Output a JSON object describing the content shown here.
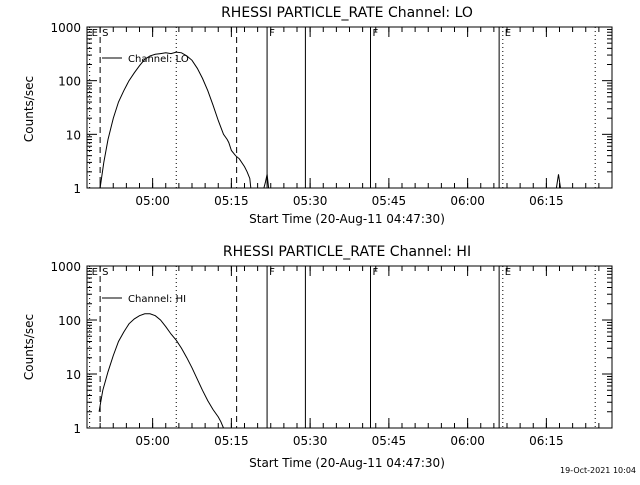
{
  "plot_date": "19-Oct-2021 10:04",
  "chart_data": [
    {
      "type": "line",
      "title": "RHESSI PARTICLE_RATE Channel: LO",
      "xlabel": "Start Time (20-Aug-11 04:47:30)",
      "ylabel": "Counts/sec",
      "x_unit": "minutes after 04:47:30",
      "xlim": [
        0,
        100
      ],
      "ylim": [
        1,
        1000
      ],
      "y_scale": "log",
      "x_tick_values": [
        12.5,
        27.5,
        42.5,
        57.5,
        72.5,
        87.5
      ],
      "x_tick_labels": [
        "05:00",
        "05:15",
        "05:30",
        "05:45",
        "06:00",
        "06:15"
      ],
      "y_tick_values": [
        1,
        10,
        100,
        1000
      ],
      "y_tick_labels": [
        "1",
        "10",
        "100",
        "1000"
      ],
      "legend": {
        "label": "Channel: LO",
        "position": "top-left"
      },
      "markers": [
        {
          "x": 0.5,
          "label": "E",
          "style": "dotted"
        },
        {
          "x": 2.5,
          "label": "S",
          "style": "dashed"
        },
        {
          "x": 17.0,
          "label": "",
          "style": "dotted"
        },
        {
          "x": 28.5,
          "label": "",
          "style": "dashed"
        },
        {
          "x": 34.3,
          "label": "F",
          "style": "solid"
        },
        {
          "x": 41.6,
          "label": "",
          "style": "solid"
        },
        {
          "x": 54.0,
          "label": "F",
          "style": "solid"
        },
        {
          "x": 78.5,
          "label": "",
          "style": "solid"
        },
        {
          "x": 79.2,
          "label": "E",
          "style": "dotted"
        },
        {
          "x": 96.8,
          "label": "",
          "style": "dotted"
        }
      ],
      "series": [
        {
          "x": [
            2.5,
            3.2,
            4.0,
            5.0,
            6.0,
            7.0,
            8.0,
            9.0,
            10.0,
            11.0,
            12.0,
            13.0,
            14.0,
            15.0,
            16.0,
            17.0,
            18.0,
            19.0,
            20.0,
            21.0,
            22.0,
            23.0,
            24.0,
            25.0,
            26.0,
            26.7,
            27.0,
            27.5,
            28.3,
            29.0,
            30.0,
            30.5,
            31.0,
            31.2
          ],
          "y": [
            1,
            3,
            8,
            20,
            40,
            65,
            100,
            140,
            190,
            250,
            290,
            310,
            320,
            330,
            320,
            340,
            330,
            290,
            240,
            170,
            110,
            65,
            35,
            18,
            10,
            8,
            7,
            5,
            4,
            3.5,
            2.5,
            2,
            1.5,
            1
          ]
        },
        {
          "x": [
            33.7,
            34.0,
            34.3,
            34.6
          ],
          "y": [
            1,
            1.3,
            1.8,
            1
          ]
        },
        {
          "x": [
            89.4,
            89.8,
            90.2
          ],
          "y": [
            1,
            1.8,
            1
          ]
        }
      ]
    },
    {
      "type": "line",
      "title": "RHESSI PARTICLE_RATE Channel: HI",
      "xlabel": "Start Time (20-Aug-11 04:47:30)",
      "ylabel": "Counts/sec",
      "x_unit": "minutes after 04:47:30",
      "xlim": [
        0,
        100
      ],
      "ylim": [
        1,
        1000
      ],
      "y_scale": "log",
      "x_tick_values": [
        12.5,
        27.5,
        42.5,
        57.5,
        72.5,
        87.5
      ],
      "x_tick_labels": [
        "05:00",
        "05:15",
        "05:30",
        "05:45",
        "06:00",
        "06:15"
      ],
      "y_tick_values": [
        1,
        10,
        100,
        1000
      ],
      "y_tick_labels": [
        "1",
        "10",
        "100",
        "1000"
      ],
      "legend": {
        "label": "Channel: HI",
        "position": "top-left"
      },
      "markers": [
        {
          "x": 0.5,
          "label": "E",
          "style": "dotted"
        },
        {
          "x": 2.5,
          "label": "S",
          "style": "dashed"
        },
        {
          "x": 17.0,
          "label": "",
          "style": "dotted"
        },
        {
          "x": 28.5,
          "label": "",
          "style": "dashed"
        },
        {
          "x": 34.3,
          "label": "F",
          "style": "solid"
        },
        {
          "x": 41.6,
          "label": "",
          "style": "solid"
        },
        {
          "x": 54.0,
          "label": "F",
          "style": "solid"
        },
        {
          "x": 78.5,
          "label": "",
          "style": "solid"
        },
        {
          "x": 79.2,
          "label": "E",
          "style": "dotted"
        },
        {
          "x": 96.8,
          "label": "",
          "style": "dotted"
        }
      ],
      "series": [
        {
          "x": [
            2.3,
            2.6,
            3.0,
            4.0,
            5.0,
            6.0,
            7.0,
            8.0,
            9.0,
            10.0,
            11.0,
            12.0,
            13.0,
            14.0,
            15.0,
            16.0,
            17.0,
            18.0,
            19.0,
            20.0,
            21.0,
            22.0,
            23.0,
            24.0,
            25.0,
            25.5,
            26.0
          ],
          "y": [
            2,
            3,
            5,
            11,
            22,
            40,
            60,
            85,
            105,
            120,
            130,
            130,
            120,
            100,
            75,
            55,
            42,
            30,
            20,
            13,
            8,
            5,
            3.2,
            2.2,
            1.6,
            1.3,
            1
          ]
        }
      ]
    }
  ]
}
